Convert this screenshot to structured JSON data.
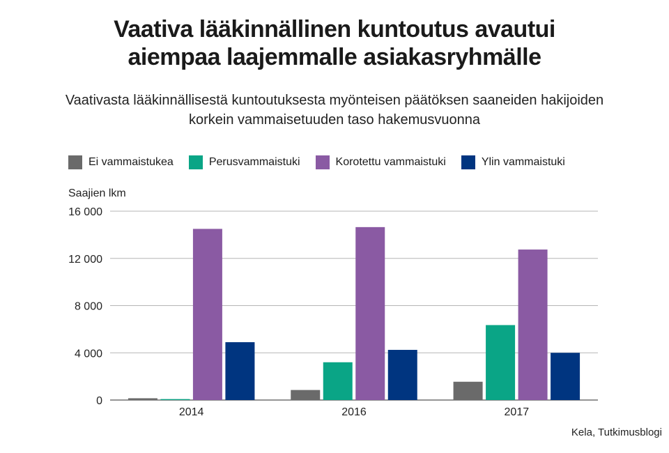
{
  "title": [
    "Vaativa lääkinnällinen kuntoutus avautui",
    "aiempaa laajemmalle asiakasryhmälle"
  ],
  "subtitle": [
    "Vaativasta lääkinnällisestä kuntoutuksesta myönteisen päätöksen saaneiden hakijoiden",
    "korkein vammaisetuuden taso hakemusvuonna"
  ],
  "source": "Kela, Tutkimusblogi",
  "chart_data": {
    "type": "bar",
    "title": "Vaativa lääkinnällinen kuntoutus avautui aiempaa laajemmalle asiakasryhmälle",
    "subtitle": "Vaativasta lääkinnällisestä kuntoutuksesta myönteisen päätöksen saaneiden hakijoiden korkein vammaisetuuden taso hakemusvuonna",
    "ylabel": "Saajien lkm",
    "xlabel": "",
    "ylim": [
      0,
      16000
    ],
    "yticks": [
      0,
      4000,
      8000,
      12000,
      16000
    ],
    "ytick_labels": [
      "0",
      "4 000",
      "8 000",
      "12 000",
      "16 000"
    ],
    "grid": true,
    "legend_position": "top",
    "categories": [
      "2014",
      "2016",
      "2017"
    ],
    "series": [
      {
        "name": "Ei vammaistukea",
        "color": "#6a6a6a",
        "values": [
          150,
          850,
          1550
        ]
      },
      {
        "name": "Perusvammaistuki",
        "color": "#0aa586",
        "values": [
          80,
          3200,
          6350
        ]
      },
      {
        "name": "Korotettu vammaistuki",
        "color": "#8a5aa3",
        "values": [
          14500,
          14650,
          12750
        ]
      },
      {
        "name": "Ylin vammaistuki",
        "color": "#003580",
        "values": [
          4900,
          4250,
          4000
        ]
      }
    ]
  }
}
